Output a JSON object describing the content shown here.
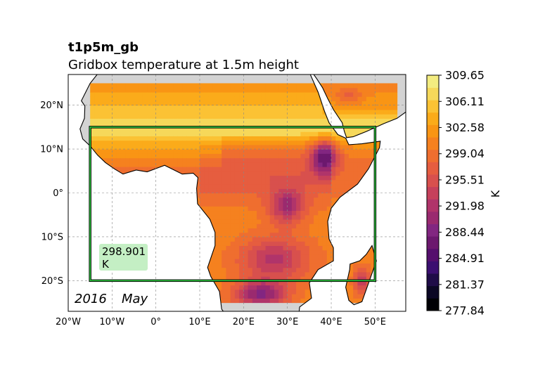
{
  "title": "t1p5m_gb",
  "subtitle": "Gridbox temperature at 1.5m height",
  "date": {
    "year": "2016",
    "month": "May"
  },
  "region_stat": {
    "value": "298.901",
    "unit": "K"
  },
  "colorbar": {
    "unit": "K",
    "ticks": [
      "277.84",
      "281.37",
      "284.91",
      "288.44",
      "291.98",
      "295.51",
      "299.04",
      "302.58",
      "306.11",
      "309.65"
    ],
    "colors": [
      "#000004",
      "#0b0724",
      "#1f0c48",
      "#3b0f70",
      "#550f6d",
      "#6c186e",
      "#822681",
      "#9a2a6f",
      "#b0346a",
      "#c6405b",
      "#d8504d",
      "#e65d3f",
      "#ef6e2f",
      "#f5811f",
      "#f99514",
      "#fbab1a",
      "#fbc234",
      "#f6d85a",
      "#f3ec80"
    ]
  },
  "chart_data": {
    "type": "heatmap",
    "projection": "PlateCarree",
    "lon_range": [
      -20,
      57
    ],
    "lat_range": [
      -27,
      27
    ],
    "x_ticks": [
      "20°W",
      "10°W",
      "0°",
      "10°E",
      "20°E",
      "30°E",
      "40°E",
      "50°E"
    ],
    "x_tick_values": [
      -20,
      -10,
      0,
      10,
      20,
      30,
      40,
      50
    ],
    "y_ticks": [
      "20°S",
      "10°S",
      "0°",
      "10°N",
      "20°N"
    ],
    "y_tick_values": [
      -20,
      -10,
      0,
      10,
      20
    ],
    "grid": true,
    "data_lon_range": [
      -15,
      55
    ],
    "data_lat_range": [
      -25,
      25
    ],
    "region_box": {
      "lon": [
        -15,
        50
      ],
      "lat": [
        -20,
        15
      ],
      "edge_color": "#2ecc40"
    },
    "value_range": [
      277.84,
      309.65
    ]
  }
}
